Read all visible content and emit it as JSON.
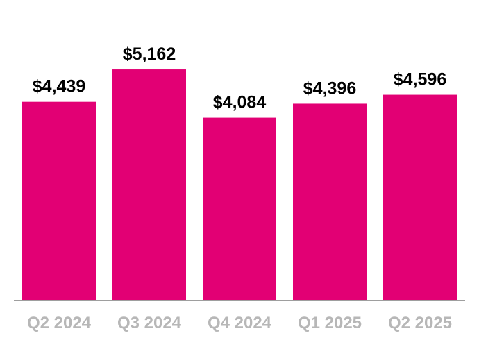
{
  "chart_data": {
    "type": "bar",
    "categories": [
      "Q2 2024",
      "Q3 2024",
      "Q4 2024",
      "Q1 2025",
      "Q2 2025"
    ],
    "values": [
      4439,
      5162,
      4084,
      4396,
      4596
    ],
    "value_labels": [
      "$4,439",
      "$5,162",
      "$4,084",
      "$4,396",
      "$4,596"
    ],
    "title": "",
    "xlabel": "",
    "ylabel": "",
    "ylim": [
      0,
      5500
    ],
    "grid": false,
    "legend": "none",
    "colors": {
      "bar": "#e20074",
      "axis": "#9e9e9e",
      "category_text": "#b7b7b7",
      "value_text": "#000000"
    }
  }
}
